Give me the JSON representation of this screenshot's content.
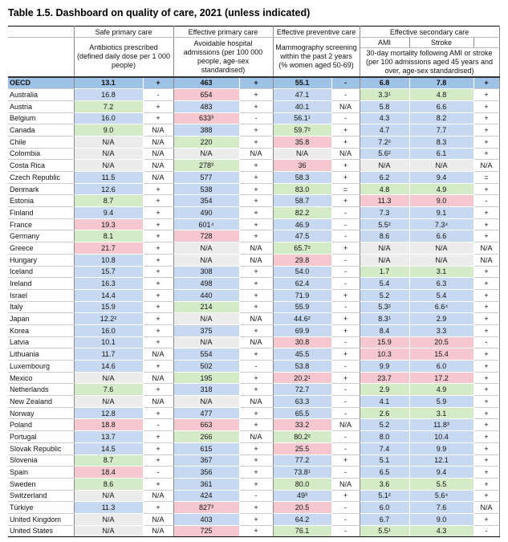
{
  "title": "Table 1.5. Dashboard on quality of care, 2021 (unless indicated)",
  "table": {
    "groups": [
      "Safe primary care",
      "Effective primary care",
      "Effective preventive care",
      "Effective secondary care"
    ],
    "descriptions": [
      "Antibiotics prescribed (defined daily dose per 1 000 people)",
      "Avoidable hospital admissions (per 100 000 people, age-sex standardised)",
      "Mammography screening within the past 2 years (% women aged 50-69)",
      "30-day mortality following AMI or stroke (per 100 admissions aged 45 years and over, age-sex standardised)"
    ],
    "subheaders": [
      "AMI",
      "Stroke"
    ],
    "palette": {
      "blue": "#c6d9f0",
      "green": "#d5eac6",
      "pink": "#f5c8cf",
      "grey": "#ececec",
      "header": "#9ec3e6"
    },
    "rows": [
      {
        "cells": [
          "OECD",
          "13.1",
          "+",
          "463",
          "+",
          "55.1",
          "-",
          "6.8",
          "7.8",
          "+"
        ],
        "shades": [
          "header",
          "header",
          "header",
          "header",
          "header"
        ]
      },
      {
        "cells": [
          "Australia",
          "16.8",
          "-",
          "654",
          "+",
          "47.1",
          "-",
          "3.3¹",
          "4.8",
          "+"
        ],
        "shades": [
          "blue",
          "pink",
          "blue",
          "green",
          "green"
        ]
      },
      {
        "cells": [
          "Austria",
          "7.2",
          "+",
          "483",
          "+",
          "40.1",
          "N/A",
          "5.8",
          "6.6",
          "+"
        ],
        "shades": [
          "green",
          "blue",
          "blue",
          "blue",
          "blue"
        ]
      },
      {
        "cells": [
          "Belgium",
          "16.0",
          "+",
          "633³",
          "-",
          "56.1¹",
          "-",
          "4.3",
          "8.2",
          "+"
        ],
        "shades": [
          "blue",
          "pink",
          "blue",
          "blue",
          "blue"
        ]
      },
      {
        "cells": [
          "Canada",
          "9.0",
          "N/A",
          "388",
          "+",
          "59.7²",
          "+",
          "4.7",
          "7.7",
          "+"
        ],
        "shades": [
          "green",
          "blue",
          "green",
          "blue",
          "blue"
        ]
      },
      {
        "cells": [
          "Chile",
          "N/A",
          "N/A",
          "220",
          "+",
          "35.8",
          "+",
          "7.2²",
          "8.3",
          "+"
        ],
        "shades": [
          "grey",
          "green",
          "pink",
          "blue",
          "blue"
        ]
      },
      {
        "cells": [
          "Colombia",
          "N/A",
          "N/A",
          "N/A",
          "N/A",
          "N/A",
          "N/A",
          "5.6²",
          "6.1",
          "+"
        ],
        "shades": [
          "grey",
          "grey",
          "grey",
          "blue",
          "blue"
        ]
      },
      {
        "cells": [
          "Costa Rica",
          "N/A",
          "N/A",
          "278³",
          "+",
          "36",
          "+",
          "N/A",
          "N/A",
          "N/A"
        ],
        "shades": [
          "grey",
          "green",
          "pink",
          "grey",
          "grey"
        ]
      },
      {
        "cells": [
          "Czech Republic",
          "11.5",
          "N/A",
          "577",
          "+",
          "58.3",
          "+",
          "6.2",
          "9.4",
          "="
        ],
        "shades": [
          "blue",
          "blue",
          "blue",
          "blue",
          "blue"
        ]
      },
      {
        "cells": [
          "Denmark",
          "12.6",
          "+",
          "538",
          "+",
          "83.0",
          "=",
          "4.8",
          "4.9",
          "+"
        ],
        "shades": [
          "blue",
          "blue",
          "green",
          "green",
          "green"
        ]
      },
      {
        "cells": [
          "Estonia",
          "8.7",
          "+",
          "354",
          "+",
          "58.7",
          "+",
          "11.3",
          "9.0",
          "-"
        ],
        "shades": [
          "green",
          "blue",
          "blue",
          "pink",
          "pink"
        ]
      },
      {
        "cells": [
          "Finland",
          "9.4",
          "+",
          "490",
          "+",
          "82.2",
          "-",
          "7.3",
          "9.1",
          "+"
        ],
        "shades": [
          "blue",
          "blue",
          "green",
          "blue",
          "blue"
        ]
      },
      {
        "cells": [
          "France",
          "19.3",
          "+",
          "601⁴",
          "+",
          "46.9",
          "-",
          "5.5²",
          "7.3⁴",
          "+"
        ],
        "shades": [
          "pink",
          "blue",
          "blue",
          "blue",
          "blue"
        ]
      },
      {
        "cells": [
          "Germany",
          "8.1",
          "+",
          "728",
          "+",
          "47.5",
          "-",
          "8.6",
          "6.6",
          "+"
        ],
        "shades": [
          "green",
          "pink",
          "blue",
          "blue",
          "blue"
        ]
      },
      {
        "cells": [
          "Greece",
          "21.7",
          "+",
          "N/A",
          "N/A",
          "65.7²",
          "+",
          "N/A",
          "N/A",
          "N/A"
        ],
        "shades": [
          "pink",
          "grey",
          "green",
          "grey",
          "grey"
        ]
      },
      {
        "cells": [
          "Hungary",
          "10.8",
          "+",
          "N/A",
          "N/A",
          "29.8",
          "-",
          "N/A",
          "N/A",
          "N/A"
        ],
        "shades": [
          "blue",
          "grey",
          "pink",
          "grey",
          "grey"
        ]
      },
      {
        "cells": [
          "Iceland",
          "15.7",
          "+",
          "308",
          "+",
          "54.0",
          "-",
          "1.7",
          "3.1",
          "+"
        ],
        "shades": [
          "blue",
          "blue",
          "blue",
          "green",
          "green"
        ]
      },
      {
        "cells": [
          "Ireland",
          "16.3",
          "+",
          "498",
          "+",
          "62.4",
          "-",
          "5.4",
          "6.3",
          "+"
        ],
        "shades": [
          "blue",
          "blue",
          "blue",
          "blue",
          "blue"
        ]
      },
      {
        "cells": [
          "Israel",
          "14.4",
          "+",
          "440",
          "+",
          "71.9",
          "+",
          "5.2",
          "5.4",
          "+"
        ],
        "shades": [
          "blue",
          "blue",
          "blue",
          "blue",
          "blue"
        ]
      },
      {
        "cells": [
          "Italy",
          "15.9",
          "+",
          "214",
          "+",
          "55.9",
          "-",
          "5.3²",
          "6.6⁴",
          "+"
        ],
        "shades": [
          "blue",
          "green",
          "blue",
          "blue",
          "blue"
        ]
      },
      {
        "cells": [
          "Japan",
          "12.2²",
          "+",
          "N/A",
          "N/A",
          "44.6²",
          "+",
          "8.3¹",
          "2.9",
          "+"
        ],
        "shades": [
          "blue",
          "grey",
          "blue",
          "blue",
          "blue"
        ]
      },
      {
        "cells": [
          "Korea",
          "16.0",
          "+",
          "375",
          "+",
          "69.9",
          "+",
          "8.4",
          "3.3",
          "+"
        ],
        "shades": [
          "blue",
          "blue",
          "blue",
          "blue",
          "blue"
        ]
      },
      {
        "cells": [
          "Latvia",
          "10.1",
          "+",
          "N/A",
          "N/A",
          "30.8",
          "-",
          "15.9",
          "20.5",
          "-"
        ],
        "shades": [
          "blue",
          "grey",
          "pink",
          "pink",
          "pink"
        ]
      },
      {
        "cells": [
          "Lithuania",
          "11.7",
          "N/A",
          "554",
          "+",
          "45.5",
          "+",
          "10.3",
          "15.4",
          "+"
        ],
        "shades": [
          "blue",
          "blue",
          "blue",
          "pink",
          "pink"
        ]
      },
      {
        "cells": [
          "Luxembourg",
          "14.6",
          "+",
          "502",
          "-",
          "53.8",
          "-",
          "9.9",
          "6.0",
          "+"
        ],
        "shades": [
          "blue",
          "blue",
          "blue",
          "blue",
          "blue"
        ]
      },
      {
        "cells": [
          "Mexico",
          "N/A",
          "N/A",
          "195",
          "+",
          "20.2¹",
          "+",
          "23.7",
          "17.2",
          "+"
        ],
        "shades": [
          "grey",
          "green",
          "pink",
          "pink",
          "pink"
        ]
      },
      {
        "cells": [
          "Netherlands",
          "7.6",
          "+",
          "318",
          "+",
          "72.7",
          "-",
          "2.9",
          "4.9",
          "+"
        ],
        "shades": [
          "green",
          "blue",
          "blue",
          "green",
          "green"
        ]
      },
      {
        "cells": [
          "New Zealand",
          "N/A",
          "N/A",
          "N/A",
          "N/A",
          "63.3",
          "-",
          "4.1",
          "5.9",
          "+"
        ],
        "shades": [
          "grey",
          "grey",
          "blue",
          "blue",
          "blue"
        ]
      },
      {
        "cells": [
          "Norway",
          "12.8",
          "+",
          "477",
          "+",
          "65.5",
          "-",
          "2.6",
          "3.1",
          "+"
        ],
        "shades": [
          "blue",
          "blue",
          "blue",
          "green",
          "green"
        ]
      },
      {
        "cells": [
          "Poland",
          "18.8",
          "-",
          "663",
          "+",
          "33.2",
          "N/A",
          "5.2",
          "11.8³",
          "+"
        ],
        "shades": [
          "pink",
          "pink",
          "pink",
          "blue",
          "blue"
        ]
      },
      {
        "cells": [
          "Portugal",
          "13.7",
          "+",
          "266",
          "N/A",
          "80.2²",
          "-",
          "8.0",
          "10.4",
          "+"
        ],
        "shades": [
          "blue",
          "green",
          "green",
          "blue",
          "blue"
        ]
      },
      {
        "cells": [
          "Slovak Republic",
          "14.5",
          "+",
          "615",
          "+",
          "25.5",
          "-",
          "7.4",
          "9.9",
          "+"
        ],
        "shades": [
          "blue",
          "blue",
          "pink",
          "blue",
          "blue"
        ]
      },
      {
        "cells": [
          "Slovenia",
          "8.7",
          "+",
          "367",
          "+",
          "77.2",
          "+",
          "5.1",
          "12.1",
          "+"
        ],
        "shades": [
          "green",
          "blue",
          "blue",
          "blue",
          "blue"
        ]
      },
      {
        "cells": [
          "Spain",
          "18.4",
          "-",
          "356",
          "+",
          "73.8¹",
          "-",
          "6.5",
          "9.4",
          "+"
        ],
        "shades": [
          "pink",
          "blue",
          "blue",
          "blue",
          "blue"
        ]
      },
      {
        "cells": [
          "Sweden",
          "8.6",
          "+",
          "361",
          "+",
          "80.0",
          "N/A",
          "3.6",
          "5.5",
          "+"
        ],
        "shades": [
          "green",
          "blue",
          "green",
          "green",
          "green"
        ]
      },
      {
        "cells": [
          "Switzerland",
          "N/A",
          "N/A",
          "424",
          "-",
          "49³",
          "+",
          "5.1²",
          "5.6⁴",
          "+"
        ],
        "shades": [
          "grey",
          "blue",
          "blue",
          "blue",
          "blue"
        ]
      },
      {
        "cells": [
          "Türkiye",
          "11.3",
          "+",
          "827³",
          "+",
          "20.5",
          "-",
          "6.0",
          "7.6",
          "N/A"
        ],
        "shades": [
          "blue",
          "pink",
          "pink",
          "blue",
          "blue"
        ]
      },
      {
        "cells": [
          "United Kingdom",
          "N/A",
          "N/A",
          "403",
          "+",
          "64.2",
          "-",
          "6.7",
          "9.0",
          "+"
        ],
        "shades": [
          "grey",
          "blue",
          "blue",
          "blue",
          "blue"
        ]
      },
      {
        "cells": [
          "United States",
          "N/A",
          "N/A",
          "725",
          "+",
          "76.1",
          "-",
          "5.5¹",
          "4.3",
          "-"
        ],
        "shades": [
          "grey",
          "pink",
          "green",
          "green",
          "green"
        ]
      }
    ]
  }
}
